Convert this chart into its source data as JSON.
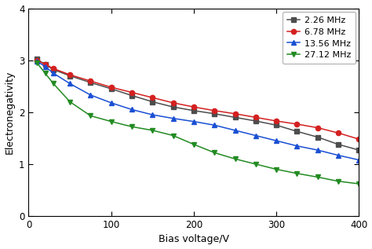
{
  "series": [
    {
      "label": "2.26 MHz",
      "color": "#4d4d4d",
      "marker": "s",
      "x": [
        10,
        20,
        30,
        50,
        75,
        100,
        125,
        150,
        175,
        200,
        225,
        250,
        275,
        300,
        325,
        350,
        375,
        400
      ],
      "y": [
        3.02,
        2.92,
        2.82,
        2.7,
        2.57,
        2.45,
        2.32,
        2.2,
        2.1,
        2.03,
        1.97,
        1.9,
        1.83,
        1.75,
        1.63,
        1.52,
        1.38,
        1.27
      ]
    },
    {
      "label": "6.78 MHz",
      "color": "#d42020",
      "marker": "o",
      "x": [
        10,
        20,
        30,
        50,
        75,
        100,
        125,
        150,
        175,
        200,
        225,
        250,
        275,
        300,
        325,
        350,
        375,
        400
      ],
      "y": [
        3.0,
        2.92,
        2.84,
        2.72,
        2.6,
        2.48,
        2.38,
        2.28,
        2.18,
        2.1,
        2.03,
        1.97,
        1.9,
        1.83,
        1.77,
        1.7,
        1.6,
        1.48
      ]
    },
    {
      "label": "13.56 MHz",
      "color": "#1a4fd4",
      "marker": "^",
      "x": [
        10,
        20,
        30,
        50,
        75,
        100,
        125,
        150,
        175,
        200,
        225,
        250,
        275,
        300,
        325,
        350,
        375,
        400
      ],
      "y": [
        2.98,
        2.88,
        2.75,
        2.55,
        2.33,
        2.18,
        2.05,
        1.95,
        1.88,
        1.82,
        1.75,
        1.65,
        1.55,
        1.45,
        1.35,
        1.27,
        1.17,
        1.08
      ]
    },
    {
      "label": "27.12 MHz",
      "color": "#228b22",
      "marker": "v",
      "x": [
        10,
        20,
        30,
        50,
        75,
        100,
        125,
        150,
        175,
        200,
        225,
        250,
        275,
        300,
        325,
        350,
        375,
        400
      ],
      "y": [
        2.95,
        2.75,
        2.55,
        2.2,
        1.93,
        1.82,
        1.72,
        1.65,
        1.55,
        1.38,
        1.22,
        1.1,
        1.0,
        0.9,
        0.82,
        0.75,
        0.67,
        0.62
      ]
    }
  ],
  "xlabel": "Bias voltage/V",
  "ylabel": "Electronegativity",
  "xlim": [
    0,
    400
  ],
  "ylim": [
    0,
    4
  ],
  "xticks": [
    0,
    100,
    200,
    300,
    400
  ],
  "yticks": [
    0,
    1,
    2,
    3,
    4
  ],
  "legend_loc": "upper right",
  "markersize": 4.5,
  "linewidth": 1.1,
  "fig_width": 4.74,
  "fig_height": 3.17,
  "dpi": 100
}
